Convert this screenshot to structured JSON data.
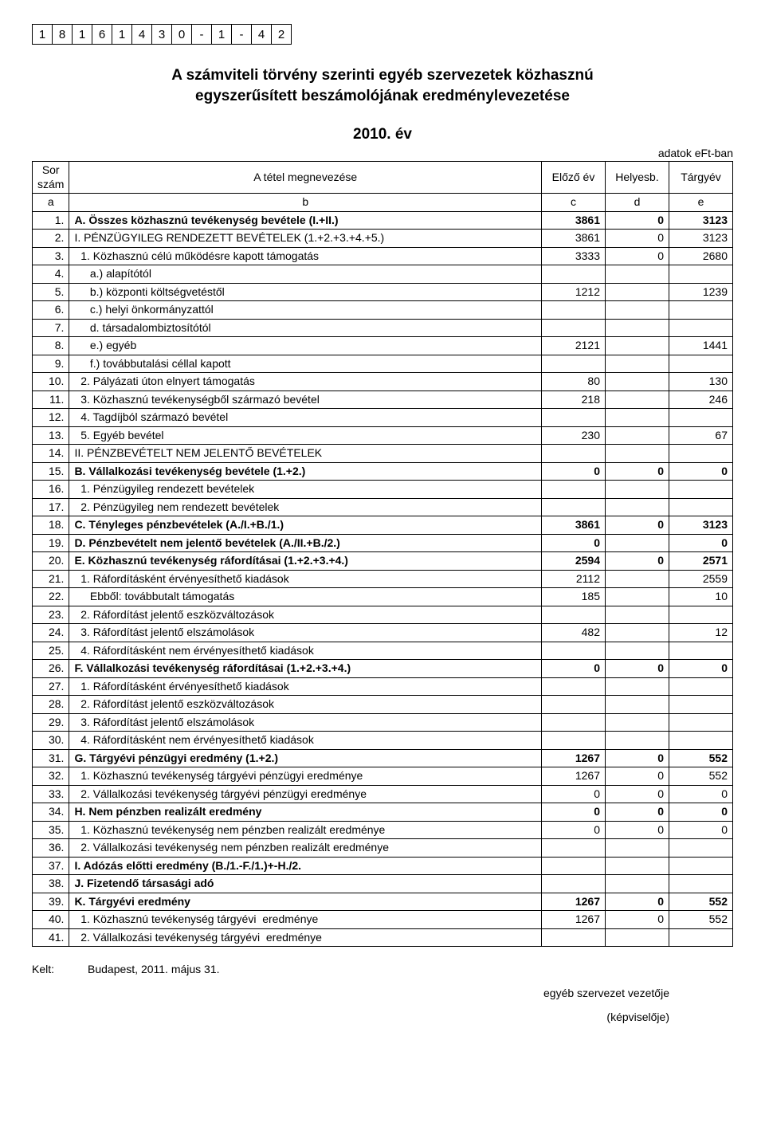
{
  "id_boxes": [
    "1",
    "8",
    "1",
    "6",
    "1",
    "4",
    "3",
    "0",
    "-",
    "1",
    "-",
    "4",
    "2"
  ],
  "title_line1": "A számviteli törvény szerinti egyéb szervezetek közhasznú",
  "title_line2": "egyszerűsített beszámolójának eredménylevezetése",
  "year": "2010. év",
  "unit_label": "adatok eFt-ban",
  "header": {
    "sor": "Sor szám",
    "megnev": "A tétel megnevezése",
    "elozo": "Előző év",
    "helyesb": "Helyesb.",
    "targy": "Tárgyév",
    "a": "a",
    "b": "b",
    "c": "c",
    "d": "d",
    "e": "e"
  },
  "rows": [
    {
      "n": "1.",
      "label": "A. Összes közhasznú tevékenység bevétele (I.+II.)",
      "c": "3861",
      "d": "0",
      "e": "3123",
      "bold": true
    },
    {
      "n": "2.",
      "label": "I. PÉNZÜGYILEG RENDEZETT BEVÉTELEK (1.+2.+3.+4.+5.)",
      "c": "3861",
      "d": "0",
      "e": "3123"
    },
    {
      "n": "3.",
      "label": "  1. Közhasznú célú működésre kapott támogatás",
      "c": "3333",
      "d": "0",
      "e": "2680"
    },
    {
      "n": "4.",
      "label": "     a.) alapítótól",
      "c": "",
      "d": "",
      "e": ""
    },
    {
      "n": "5.",
      "label": "     b.) központi költségvetéstől",
      "c": "1212",
      "d": "",
      "e": "1239"
    },
    {
      "n": "6.",
      "label": "     c.) helyi önkormányzattól",
      "c": "",
      "d": "",
      "e": ""
    },
    {
      "n": "7.",
      "label": "     d. társadalombiztosítótól",
      "c": "",
      "d": "",
      "e": ""
    },
    {
      "n": "8.",
      "label": "     e.) egyéb",
      "c": "2121",
      "d": "",
      "e": "1441"
    },
    {
      "n": "9.",
      "label": "     f.) továbbutalási céllal kapott",
      "c": "",
      "d": "",
      "e": ""
    },
    {
      "n": "10.",
      "label": "  2. Pályázati úton elnyert támogatás",
      "c": "80",
      "d": "",
      "e": "130"
    },
    {
      "n": "11.",
      "label": "  3. Közhasznú tevékenységből származó bevétel",
      "c": "218",
      "d": "",
      "e": "246"
    },
    {
      "n": "12.",
      "label": "  4. Tagdíjból származó bevétel",
      "c": "",
      "d": "",
      "e": ""
    },
    {
      "n": "13.",
      "label": "  5. Egyéb bevétel",
      "c": "230",
      "d": "",
      "e": "67"
    },
    {
      "n": "14.",
      "label": "II. PÉNZBEVÉTELT NEM JELENTŐ BEVÉTELEK",
      "c": "",
      "d": "",
      "e": ""
    },
    {
      "n": "15.",
      "label": "B. Vállalkozási tevékenység bevétele (1.+2.)",
      "c": "0",
      "d": "0",
      "e": "0",
      "bold": true
    },
    {
      "n": "16.",
      "label": "  1. Pénzügyileg rendezett bevételek",
      "c": "",
      "d": "",
      "e": ""
    },
    {
      "n": "17.",
      "label": "  2. Pénzügyileg nem rendezett bevételek",
      "c": "",
      "d": "",
      "e": ""
    },
    {
      "n": "18.",
      "label": "C. Tényleges pénzbevételek (A./I.+B./1.)",
      "c": "3861",
      "d": "0",
      "e": "3123",
      "bold": true
    },
    {
      "n": "19.",
      "label": "D. Pénzbevételt nem jelentő bevételek (A./II.+B./2.)",
      "c": "0",
      "d": "",
      "e": "0",
      "bold": true
    },
    {
      "n": "20.",
      "label": "E. Közhasznú tevékenység ráfordításai (1.+2.+3.+4.)",
      "c": "2594",
      "d": "0",
      "e": "2571",
      "bold": true
    },
    {
      "n": "21.",
      "label": "  1. Ráfordításként érvényesíthető kiadások",
      "c": "2112",
      "d": "",
      "e": "2559"
    },
    {
      "n": "22.",
      "label": "     Ebből: továbbutalt támogatás",
      "c": "185",
      "d": "",
      "e": "10"
    },
    {
      "n": "23.",
      "label": "  2. Ráfordítást jelentő eszközváltozások",
      "c": "",
      "d": "",
      "e": ""
    },
    {
      "n": "24.",
      "label": "  3. Ráfordítást jelentő elszámolások",
      "c": "482",
      "d": "",
      "e": "12"
    },
    {
      "n": "25.",
      "label": "  4. Ráfordításként nem érvényesíthető kiadások",
      "c": "",
      "d": "",
      "e": ""
    },
    {
      "n": "26.",
      "label": "F. Vállalkozási tevékenység ráfordításai (1.+2.+3.+4.)",
      "c": "0",
      "d": "0",
      "e": "0",
      "bold": true
    },
    {
      "n": "27.",
      "label": "  1. Ráfordításként érvényesíthető kiadások",
      "c": "",
      "d": "",
      "e": ""
    },
    {
      "n": "28.",
      "label": "  2. Ráfordítást jelentő eszközváltozások",
      "c": "",
      "d": "",
      "e": ""
    },
    {
      "n": "29.",
      "label": "  3. Ráfordítást jelentő elszámolások",
      "c": "",
      "d": "",
      "e": ""
    },
    {
      "n": "30.",
      "label": "  4. Ráfordításként nem érvényesíthető kiadások",
      "c": "",
      "d": "",
      "e": ""
    },
    {
      "n": "31.",
      "label": "G. Tárgyévi pénzügyi eredmény (1.+2.)",
      "c": "1267",
      "d": "0",
      "e": "552",
      "bold": true
    },
    {
      "n": "32.",
      "label": "  1. Közhasznú tevékenység tárgyévi pénzügyi eredménye",
      "c": "1267",
      "d": "0",
      "e": "552"
    },
    {
      "n": "33.",
      "label": "  2. Vállalkozási tevékenység tárgyévi pénzügyi eredménye",
      "c": "0",
      "d": "0",
      "e": "0"
    },
    {
      "n": "34.",
      "label": "H. Nem pénzben realizált eredmény",
      "c": "0",
      "d": "0",
      "e": "0",
      "bold": true
    },
    {
      "n": "35.",
      "label": "  1. Közhasznú tevékenység nem pénzben realizált eredménye",
      "c": "0",
      "d": "0",
      "e": "0"
    },
    {
      "n": "36.",
      "label": "  2. Vállalkozási tevékenység nem pénzben realizált eredménye",
      "c": "",
      "d": "",
      "e": ""
    },
    {
      "n": "37.",
      "label": "I. Adózás előtti eredmény (B./1.-F./1.)+-H./2.",
      "c": "",
      "d": "",
      "e": "",
      "bold": true
    },
    {
      "n": "38.",
      "label": "J. Fizetendő társasági adó",
      "c": "",
      "d": "",
      "e": "",
      "bold": true
    },
    {
      "n": "39.",
      "label": "K. Tárgyévi eredmény",
      "c": "1267",
      "d": "0",
      "e": "552",
      "bold": true
    },
    {
      "n": "40.",
      "label": "  1. Közhasznú tevékenység tárgyévi  eredménye",
      "c": "1267",
      "d": "0",
      "e": "552"
    },
    {
      "n": "41.",
      "label": "  2. Vállalkozási tevékenység tárgyévi  eredménye",
      "c": "",
      "d": "",
      "e": ""
    }
  ],
  "footer": {
    "kelt_label": "Kelt:",
    "kelt_value": "Budapest, 2011. május 31.",
    "sign1": "egyéb szervezet vezetője",
    "sign2": "(képviselője)"
  },
  "style": {
    "font_family": "Arial",
    "font_size_base": 14,
    "title_fontsize": 19,
    "border_color": "#000000",
    "bg_color": "#ffffff",
    "col_widths": {
      "num": 46,
      "val": 80
    }
  }
}
